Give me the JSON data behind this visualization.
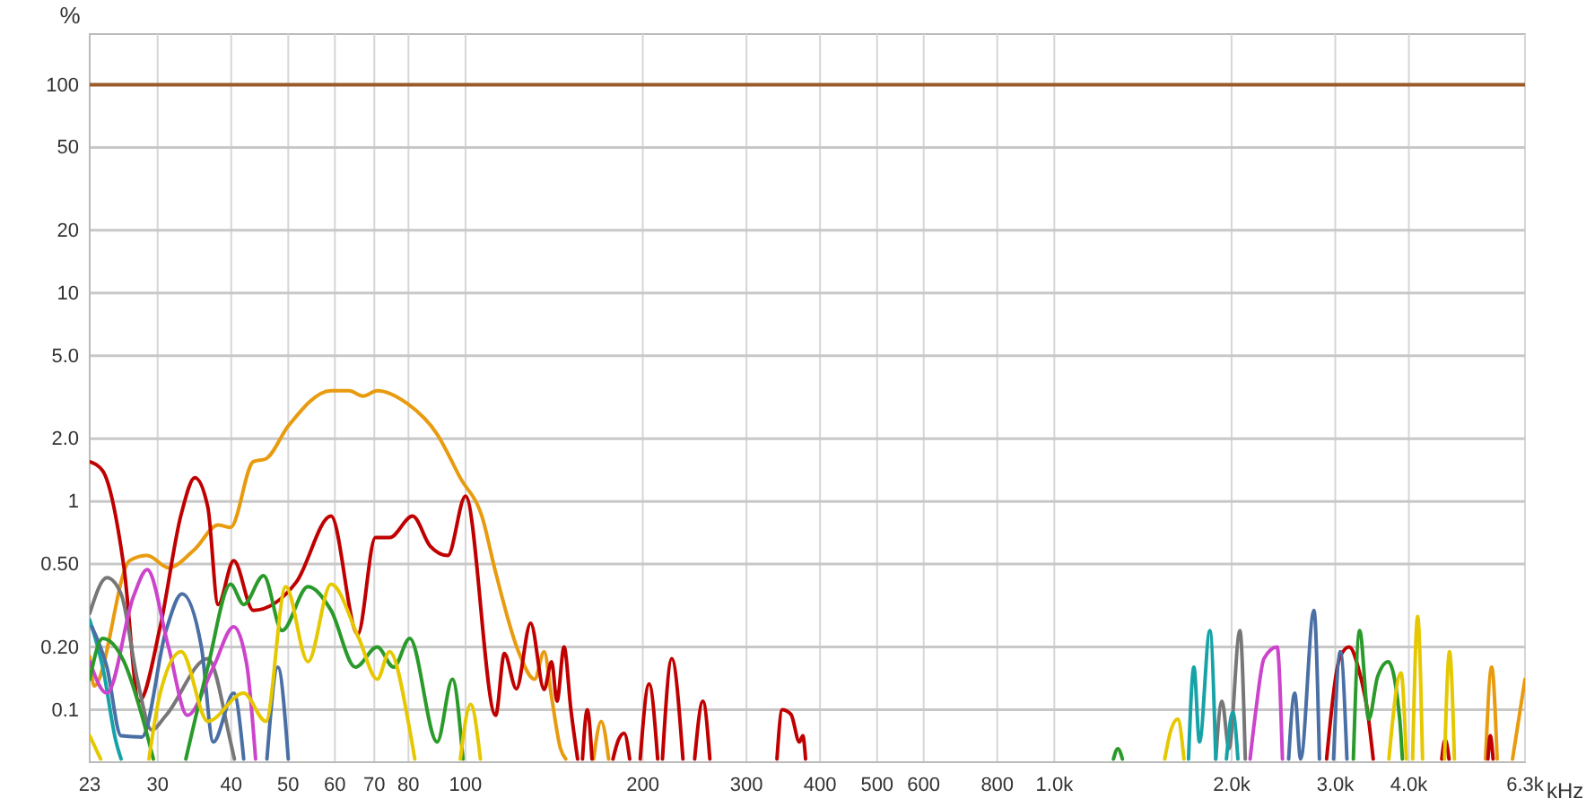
{
  "chart_data": {
    "type": "line",
    "ylabel": "%",
    "xlabel": "kHz",
    "log": "xy",
    "grid": true,
    "marker": "none",
    "line_style": "solid",
    "xlim": [
      23,
      6300
    ],
    "ylim": [
      0.056,
      175
    ],
    "xticks": [
      23,
      30,
      40,
      50,
      60,
      70,
      80,
      100,
      200,
      300,
      400,
      500,
      600,
      800,
      {
        "value": 1000,
        "label": "1.0k"
      },
      {
        "value": 2000,
        "label": "2.0k"
      },
      {
        "value": 3000,
        "label": "3.0k"
      },
      {
        "value": 4000,
        "label": "4.0k"
      },
      {
        "value": 6300,
        "label": "6.3k"
      }
    ],
    "yticks": [
      0.1,
      {
        "value": 0.2,
        "label": "0.20"
      },
      {
        "value": 0.5,
        "label": "0.50"
      },
      1,
      {
        "value": 2,
        "label": "2.0"
      },
      {
        "value": 5,
        "label": "5.0"
      },
      10,
      20,
      50,
      100
    ],
    "series": [
      {
        "color": "#9a5a2a",
        "x": [
          23,
          6300
        ],
        "values": [
          100,
          100
        ]
      },
      {
        "color": "#e89b0f",
        "x": [
          23,
          23.4,
          26.9,
          28.8,
          31.3,
          34.7,
          38,
          39.9,
          43.6,
          45.8,
          50,
          59.1,
          63.4,
          67,
          70.8,
          79.6,
          89.5,
          97.9,
          107,
          112,
          123,
          131,
          136,
          140,
          145,
          148,
          157,
          165,
          170,
          175,
          3000,
          5400,
          5530,
          5650,
          5800,
          6000,
          6300
        ],
        "values": [
          0.18,
          0.13,
          0.52,
          0.55,
          0.48,
          0.59,
          0.77,
          0.75,
          1.55,
          1.6,
          2.3,
          3.4,
          3.4,
          3.2,
          3.4,
          2.95,
          2.1,
          1.3,
          0.82,
          0.48,
          0.19,
          0.14,
          0.19,
          0.115,
          0.065,
          0.058,
          null,
          0.058,
          0.088,
          0.058,
          null,
          0.058,
          0.16,
          0.058,
          null,
          0.058,
          0.14
        ]
      },
      {
        "color": "#c00000",
        "x": [
          23,
          24.2,
          26.3,
          27.9,
          30.3,
          32.9,
          34.7,
          36.5,
          38,
          40.4,
          43.6,
          51.6,
          59.1,
          65.6,
          70.3,
          74.3,
          81.3,
          87.1,
          93.3,
          100,
          112.5,
          116.4,
          122,
          129,
          136,
          140,
          143,
          147,
          151,
          155,
          156,
          158,
          161,
          164,
          170,
          178,
          182,
          186,
          190,
          195,
          198,
          205,
          212,
          214,
          216,
          224,
          234,
          238,
          245,
          253,
          260,
          300,
          338,
          345,
          357,
          369,
          374,
          378,
          1000,
          2900,
          3059,
          3168,
          3300,
          3400,
          3480,
          4000,
          4550,
          4610,
          4680,
          5000,
          5450,
          5500,
          5560
        ],
        "values": [
          1.55,
          1.4,
          0.48,
          0.11,
          0.25,
          0.87,
          1.3,
          0.94,
          0.32,
          0.52,
          0.3,
          0.41,
          0.85,
          0.23,
          0.67,
          0.67,
          0.85,
          0.61,
          0.55,
          1.06,
          0.094,
          0.186,
          0.126,
          0.26,
          0.125,
          0.17,
          0.11,
          0.2,
          0.1,
          0.058,
          null,
          0.058,
          0.1,
          0.058,
          null,
          0.058,
          0.072,
          0.077,
          0.058,
          null,
          0.058,
          0.133,
          0.058,
          null,
          0.058,
          0.176,
          0.058,
          null,
          0.058,
          0.11,
          0.058,
          null,
          0.058,
          0.1,
          0.095,
          0.07,
          0.075,
          0.058,
          null,
          0.058,
          0.18,
          0.2,
          0.15,
          0.1,
          0.058,
          null,
          0.058,
          0.072,
          0.058,
          null,
          0.058,
          0.075,
          0.058
        ]
      },
      {
        "color": "#777777",
        "x": [
          23,
          24.6,
          26,
          27.7,
          29.3,
          31,
          36.5,
          39.9,
          40.5,
          1000,
          1880,
          1926,
          1980,
          2066,
          2110
        ],
        "values": [
          0.29,
          0.43,
          0.36,
          0.14,
          0.08,
          0.094,
          0.176,
          0.07,
          0.058,
          null,
          0.058,
          0.11,
          0.065,
          0.24,
          0.058
        ]
      },
      {
        "color": "#16a3a8",
        "x": [
          23,
          24.2,
          25.5,
          26,
          1000,
          1690,
          1726,
          1764,
          1837,
          1880,
          1920,
          1960,
          2010,
          2050
        ],
        "values": [
          0.27,
          0.16,
          0.07,
          0.058,
          null,
          0.058,
          0.16,
          0.07,
          0.24,
          0.058,
          null,
          0.058,
          0.097,
          0.058
        ]
      },
      {
        "color": "#4a6fa5",
        "x": [
          23.2,
          24.6,
          26,
          28.2,
          31,
          33,
          35.6,
          37.3,
          40.4,
          42,
          44,
          46,
          48,
          50,
          1000,
          2500,
          2560,
          2620,
          2760,
          2820,
          2900,
          2980,
          3060,
          3140
        ],
        "values": [
          0.25,
          0.16,
          0.075,
          0.074,
          0.24,
          0.36,
          0.2,
          0.07,
          0.12,
          0.058,
          null,
          0.058,
          0.16,
          0.058,
          null,
          0.058,
          0.12,
          0.058,
          0.3,
          0.058,
          null,
          0.058,
          0.19,
          0.058
        ]
      },
      {
        "color": "#cc44cc",
        "x": [
          23,
          24.6,
          27.3,
          28.8,
          31.3,
          33.7,
          37.3,
          40.4,
          42.5,
          44,
          1000,
          2150,
          2200,
          2270,
          2390,
          2440
        ],
        "values": [
          0.17,
          0.12,
          0.35,
          0.47,
          0.2,
          0.094,
          0.16,
          0.25,
          0.165,
          0.058,
          null,
          0.058,
          0.1,
          0.176,
          0.2,
          0.058
        ]
      },
      {
        "color": "#2a9a2a",
        "x": [
          23,
          24.2,
          26.3,
          28.2,
          29.5,
          31,
          33.5,
          36.5,
          39.9,
          42,
          45.4,
          48.8,
          54,
          59.1,
          65,
          70.8,
          75.5,
          80.4,
          89.5,
          95,
          99,
          500,
          1260,
          1282,
          1305,
          2000,
          3220,
          3300,
          3420,
          3540,
          3690,
          3860,
          3900
        ],
        "values": [
          0.14,
          0.22,
          0.17,
          0.094,
          0.058,
          null,
          0.058,
          0.16,
          0.4,
          0.32,
          0.44,
          0.24,
          0.39,
          0.3,
          0.16,
          0.2,
          0.16,
          0.22,
          0.07,
          0.14,
          0.058,
          null,
          0.058,
          0.065,
          0.058,
          null,
          0.058,
          0.24,
          0.09,
          0.144,
          0.17,
          0.09,
          0.058
        ]
      },
      {
        "color": "#e6c800",
        "x": [
          23,
          24,
          26,
          29,
          30.3,
          32.9,
          36.5,
          42,
          45.8,
          49.5,
          54,
          59.1,
          65.9,
          70.8,
          74.3,
          80.4,
          82,
          90,
          98,
          102,
          106,
          500,
          1540,
          1578,
          1620,
          1660,
          2500,
          3700,
          3880,
          3960,
          4000,
          4060,
          4140,
          4220,
          4400,
          4600,
          4690,
          4780
        ],
        "values": [
          0.075,
          0.058,
          null,
          0.058,
          0.12,
          0.19,
          0.088,
          0.12,
          0.088,
          0.39,
          0.17,
          0.4,
          0.22,
          0.14,
          0.19,
          0.08,
          0.058,
          null,
          0.058,
          0.106,
          0.058,
          null,
          0.058,
          0.08,
          0.09,
          0.058,
          null,
          0.058,
          0.15,
          0.058,
          null,
          0.058,
          0.28,
          0.058,
          null,
          0.058,
          0.19,
          0.058
        ]
      }
    ]
  }
}
